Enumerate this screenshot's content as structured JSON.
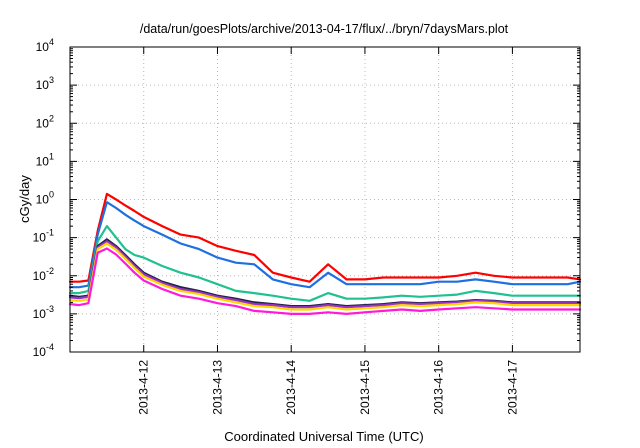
{
  "chart_data": {
    "type": "line",
    "title": "/data/run/goesPlots/archive/2013-04-17/flux/../bryn/7daysMars.plot",
    "xlabel": "Coordinated Universal Time (UTC)",
    "ylabel": "cGy/day",
    "y_scale": "log",
    "ylim_exp": [
      -4,
      4
    ],
    "y_ticks_exp": [
      -4,
      -3,
      -2,
      -1,
      0,
      1,
      2,
      3,
      4
    ],
    "xlim": [
      "2013-04-11T00:00",
      "2013-04-17T22:00"
    ],
    "x_ticks": [
      "2013-4-12",
      "2013-4-13",
      "2013-4-14",
      "2013-4-15",
      "2013-4-16",
      "2013-4-17"
    ],
    "grid": true,
    "x_hours": [
      0,
      3,
      6,
      9,
      12,
      15,
      18,
      21,
      24,
      30,
      36,
      42,
      48,
      54,
      60,
      66,
      72,
      78,
      84,
      90,
      96,
      102,
      108,
      114,
      120,
      126,
      132,
      138,
      144,
      150,
      156,
      162,
      166
    ],
    "series": [
      {
        "color": "#ff0000",
        "values": [
          0.007,
          0.007,
          0.0075,
          0.15,
          1.4,
          1.0,
          0.7,
          0.5,
          0.35,
          0.2,
          0.12,
          0.1,
          0.06,
          0.045,
          0.035,
          0.012,
          0.009,
          0.007,
          0.02,
          0.008,
          0.008,
          0.009,
          0.009,
          0.009,
          0.009,
          0.01,
          0.012,
          0.01,
          0.009,
          0.009,
          0.009,
          0.009,
          0.008
        ]
      },
      {
        "color": "#1f6fe0",
        "values": [
          0.005,
          0.005,
          0.0055,
          0.12,
          0.85,
          0.6,
          0.4,
          0.28,
          0.2,
          0.12,
          0.07,
          0.05,
          0.03,
          0.022,
          0.02,
          0.008,
          0.006,
          0.005,
          0.012,
          0.006,
          0.006,
          0.006,
          0.006,
          0.006,
          0.007,
          0.007,
          0.008,
          0.007,
          0.006,
          0.006,
          0.006,
          0.006,
          0.007
        ]
      },
      {
        "color": "#20c090",
        "values": [
          0.0035,
          0.0035,
          0.004,
          0.08,
          0.2,
          0.1,
          0.05,
          0.035,
          0.03,
          0.018,
          0.012,
          0.009,
          0.006,
          0.004,
          0.0035,
          0.003,
          0.0025,
          0.0022,
          0.0035,
          0.0025,
          0.0025,
          0.0027,
          0.003,
          0.0028,
          0.003,
          0.0032,
          0.004,
          0.0035,
          0.003,
          0.003,
          0.003,
          0.003,
          0.003
        ]
      },
      {
        "color": "#222244",
        "values": [
          0.003,
          0.0028,
          0.003,
          0.06,
          0.09,
          0.06,
          0.035,
          0.02,
          0.012,
          0.007,
          0.005,
          0.004,
          0.003,
          0.0025,
          0.002,
          0.0018,
          0.0016,
          0.0016,
          0.0018,
          0.0016,
          0.0017,
          0.0018,
          0.002,
          0.0019,
          0.002,
          0.0021,
          0.0023,
          0.0022,
          0.002,
          0.002,
          0.002,
          0.002,
          0.002
        ]
      },
      {
        "color": "#9933cc",
        "values": [
          0.0027,
          0.0026,
          0.0028,
          0.055,
          0.08,
          0.055,
          0.032,
          0.018,
          0.011,
          0.0065,
          0.0045,
          0.0037,
          0.0028,
          0.0023,
          0.0018,
          0.0017,
          0.0015,
          0.0015,
          0.0017,
          0.0015,
          0.0016,
          0.0017,
          0.0019,
          0.0018,
          0.0019,
          0.002,
          0.0022,
          0.0021,
          0.0019,
          0.0019,
          0.0019,
          0.0019,
          0.0019
        ]
      },
      {
        "color": "#ffd400",
        "values": [
          0.0023,
          0.0022,
          0.0024,
          0.05,
          0.07,
          0.048,
          0.028,
          0.016,
          0.0095,
          0.0058,
          0.004,
          0.0033,
          0.0025,
          0.002,
          0.0016,
          0.0015,
          0.0013,
          0.0013,
          0.0015,
          0.0013,
          0.0014,
          0.0015,
          0.0017,
          0.0016,
          0.0017,
          0.0018,
          0.002,
          0.0019,
          0.0017,
          0.0017,
          0.0017,
          0.0017,
          0.0017
        ]
      },
      {
        "color": "#ff1ad9",
        "values": [
          0.0018,
          0.0017,
          0.0019,
          0.04,
          0.052,
          0.036,
          0.021,
          0.012,
          0.0075,
          0.0045,
          0.003,
          0.0025,
          0.0019,
          0.0016,
          0.0012,
          0.0011,
          0.001,
          0.001,
          0.0011,
          0.001,
          0.0011,
          0.0012,
          0.0013,
          0.0012,
          0.0013,
          0.0014,
          0.0015,
          0.0014,
          0.0013,
          0.0013,
          0.0013,
          0.0013,
          0.0013
        ]
      }
    ]
  }
}
